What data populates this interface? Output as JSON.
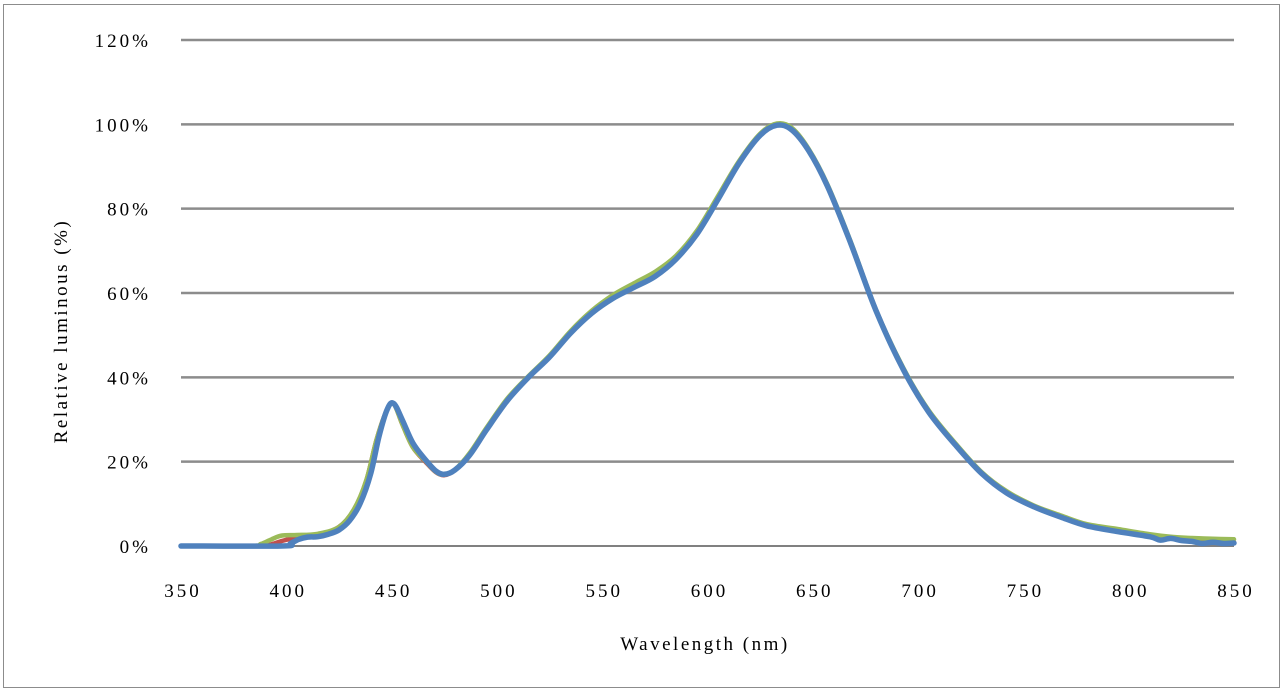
{
  "chart_data": {
    "type": "line",
    "title": "",
    "xlabel": "Wavelength (nm)",
    "ylabel": "Relative luminous (%)",
    "xlim": [
      350,
      850
    ],
    "ylim": [
      0,
      120
    ],
    "x_ticks": [
      "350",
      "400",
      "450",
      "500",
      "550",
      "600",
      "650",
      "700",
      "750",
      "800",
      "850"
    ],
    "y_ticks": [
      "0%",
      "20%",
      "40%",
      "60%",
      "80%",
      "100%",
      "120%"
    ],
    "grid": true,
    "legend": "none",
    "series": [
      {
        "color": "#c0504d",
        "points": [
          [
            350,
            0
          ],
          [
            385,
            0
          ],
          [
            392,
            0.3
          ],
          [
            398,
            1.2
          ],
          [
            405,
            2.0
          ],
          [
            415,
            2.6
          ],
          [
            425,
            4.5
          ],
          [
            432,
            8.5
          ],
          [
            438,
            15.5
          ],
          [
            443,
            25.5
          ],
          [
            448,
            32.5
          ],
          [
            451,
            33.8
          ],
          [
            455,
            29
          ],
          [
            460,
            23.5
          ],
          [
            466,
            20
          ],
          [
            471,
            17.5
          ],
          [
            475,
            16.8
          ],
          [
            480,
            18
          ],
          [
            487,
            21.8
          ],
          [
            495,
            27.6
          ],
          [
            505,
            34.8
          ],
          [
            515,
            40.2
          ],
          [
            525,
            45
          ],
          [
            535,
            50.8
          ],
          [
            545,
            55.5
          ],
          [
            555,
            59
          ],
          [
            565,
            61.6
          ],
          [
            575,
            64.2
          ],
          [
            585,
            68.4
          ],
          [
            595,
            74.2
          ],
          [
            605,
            82.5
          ],
          [
            615,
            91
          ],
          [
            625,
            97.6
          ],
          [
            633,
            100
          ],
          [
            640,
            98.9
          ],
          [
            648,
            94
          ],
          [
            657,
            85.5
          ],
          [
            668,
            72
          ],
          [
            680,
            56
          ],
          [
            693,
            42
          ],
          [
            705,
            32
          ],
          [
            718,
            24
          ],
          [
            730,
            17.5
          ],
          [
            742,
            12.8
          ],
          [
            755,
            9.5
          ],
          [
            768,
            7
          ],
          [
            780,
            5
          ],
          [
            795,
            3.8
          ],
          [
            810,
            2.6
          ],
          [
            820,
            1.8
          ],
          [
            830,
            1.4
          ],
          [
            840,
            1.1
          ],
          [
            850,
            0.9
          ]
        ]
      },
      {
        "color": "#9bbb59",
        "points": [
          [
            350,
            0
          ],
          [
            383,
            0
          ],
          [
            388,
            0.5
          ],
          [
            393,
            1.6
          ],
          [
            398,
            2.5
          ],
          [
            405,
            2.6
          ],
          [
            415,
            2.9
          ],
          [
            425,
            4.5
          ],
          [
            432,
            8.6
          ],
          [
            438,
            15.6
          ],
          [
            443,
            25.5
          ],
          [
            448,
            32.5
          ],
          [
            451,
            33.7
          ],
          [
            455,
            29
          ],
          [
            460,
            23.5
          ],
          [
            466,
            20.2
          ],
          [
            471,
            17.6
          ],
          [
            475,
            16.9
          ],
          [
            480,
            18.1
          ],
          [
            487,
            22
          ],
          [
            495,
            28
          ],
          [
            505,
            35
          ],
          [
            515,
            40.3
          ],
          [
            525,
            45.2
          ],
          [
            535,
            51
          ],
          [
            545,
            55.8
          ],
          [
            555,
            59.5
          ],
          [
            565,
            62.3
          ],
          [
            575,
            65
          ],
          [
            585,
            68.8
          ],
          [
            595,
            74.8
          ],
          [
            605,
            83
          ],
          [
            615,
            91.3
          ],
          [
            625,
            97.8
          ],
          [
            633,
            100.2
          ],
          [
            640,
            99.2
          ],
          [
            648,
            94.2
          ],
          [
            657,
            85.7
          ],
          [
            668,
            72.2
          ],
          [
            680,
            56
          ],
          [
            693,
            42.2
          ],
          [
            705,
            32.2
          ],
          [
            718,
            24.2
          ],
          [
            730,
            17.6
          ],
          [
            742,
            13
          ],
          [
            755,
            9.6
          ],
          [
            768,
            7.2
          ],
          [
            780,
            5.2
          ],
          [
            795,
            4
          ],
          [
            810,
            2.8
          ],
          [
            820,
            2.2
          ],
          [
            830,
            1.9
          ],
          [
            840,
            1.7
          ],
          [
            850,
            1.6
          ]
        ]
      },
      {
        "color": "#4f81bd",
        "points": [
          [
            350,
            0
          ],
          [
            398,
            0
          ],
          [
            402,
            0.6
          ],
          [
            406,
            1.6
          ],
          [
            410,
            2.1
          ],
          [
            415,
            2.2
          ],
          [
            420,
            2.8
          ],
          [
            425,
            3.8
          ],
          [
            430,
            6
          ],
          [
            435,
            10
          ],
          [
            440,
            17
          ],
          [
            444,
            26
          ],
          [
            448,
            32.5
          ],
          [
            451,
            33.8
          ],
          [
            455,
            30
          ],
          [
            460,
            24.5
          ],
          [
            466,
            20.5
          ],
          [
            471,
            17.8
          ],
          [
            475,
            17
          ],
          [
            480,
            18
          ],
          [
            487,
            21.5
          ],
          [
            495,
            27.5
          ],
          [
            505,
            34.5
          ],
          [
            515,
            40
          ],
          [
            525,
            44.8
          ],
          [
            535,
            50.5
          ],
          [
            545,
            55.2
          ],
          [
            555,
            58.7
          ],
          [
            565,
            61.3
          ],
          [
            575,
            63.9
          ],
          [
            585,
            68
          ],
          [
            595,
            74
          ],
          [
            605,
            82.2
          ],
          [
            615,
            90.8
          ],
          [
            625,
            97.4
          ],
          [
            633,
            99.8
          ],
          [
            640,
            98.7
          ],
          [
            648,
            93.8
          ],
          [
            657,
            85.3
          ],
          [
            668,
            71.8
          ],
          [
            680,
            55.8
          ],
          [
            693,
            41.8
          ],
          [
            705,
            31.8
          ],
          [
            718,
            23.8
          ],
          [
            730,
            17.3
          ],
          [
            742,
            12.6
          ],
          [
            755,
            9.3
          ],
          [
            768,
            6.8
          ],
          [
            780,
            4.8
          ],
          [
            795,
            3.4
          ],
          [
            810,
            2.2
          ],
          [
            815,
            1.4
          ],
          [
            820,
            1.8
          ],
          [
            825,
            1.3
          ],
          [
            830,
            1.1
          ],
          [
            835,
            0.6
          ],
          [
            840,
            0.9
          ],
          [
            845,
            0.6
          ],
          [
            850,
            0.7
          ]
        ]
      }
    ]
  }
}
